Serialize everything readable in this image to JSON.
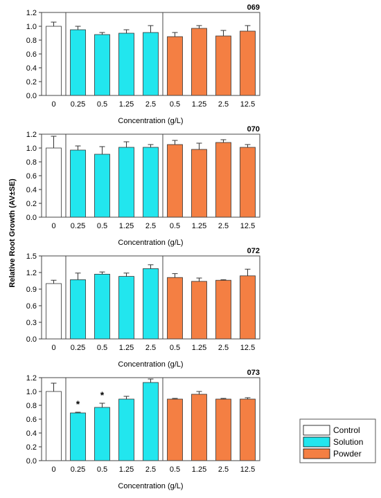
{
  "figure": {
    "ylabel": "Relative Root Growth (AV±SE)"
  },
  "legend": {
    "position": "bottom-right",
    "items": [
      {
        "label": "Control",
        "color": "#ffffff"
      },
      {
        "label": "Solution",
        "color": "#22e6ee"
      },
      {
        "label": "Powder",
        "color": "#f47f43"
      }
    ]
  },
  "chart_data": [
    {
      "type": "bar",
      "title": "069",
      "xlabel": "Concentration (g/L)",
      "ylim": [
        0,
        1.2
      ],
      "yticks": [
        "0.0",
        "0.2",
        "0.4",
        "0.6",
        "0.8",
        "1.0",
        "1.2"
      ],
      "categories": [
        "0",
        "0.25",
        "0.5",
        "1.25",
        "2.5",
        "0.5",
        "1.25",
        "2.5",
        "12.5"
      ],
      "groups": [
        "Control",
        "Solution",
        "Solution",
        "Solution",
        "Solution",
        "Powder",
        "Powder",
        "Powder",
        "Powder"
      ],
      "values": [
        1.0,
        0.95,
        0.88,
        0.9,
        0.91,
        0.85,
        0.97,
        0.86,
        0.93
      ],
      "errors": [
        0.06,
        0.05,
        0.03,
        0.05,
        0.1,
        0.06,
        0.04,
        0.08,
        0.08
      ],
      "annotations": [
        "",
        "",
        "",
        "",
        "",
        "",
        "",
        "",
        ""
      ]
    },
    {
      "type": "bar",
      "title": "070",
      "xlabel": "Concentration (g/L)",
      "ylim": [
        0,
        1.2
      ],
      "yticks": [
        "0.0",
        "0.2",
        "0.4",
        "0.6",
        "0.8",
        "1.0",
        "1.2"
      ],
      "categories": [
        "0",
        "0.25",
        "0.5",
        "1.25",
        "2.5",
        "0.5",
        "1.25",
        "2.5",
        "12.5"
      ],
      "groups": [
        "Control",
        "Solution",
        "Solution",
        "Solution",
        "Solution",
        "Powder",
        "Powder",
        "Powder",
        "Powder"
      ],
      "values": [
        1.0,
        0.97,
        0.91,
        1.01,
        1.01,
        1.05,
        0.98,
        1.08,
        1.01
      ],
      "errors": [
        0.17,
        0.06,
        0.11,
        0.08,
        0.04,
        0.06,
        0.09,
        0.04,
        0.04
      ],
      "annotations": [
        "",
        "",
        "",
        "",
        "",
        "",
        "",
        "",
        ""
      ]
    },
    {
      "type": "bar",
      "title": "072",
      "xlabel": "Concentration (g/L)",
      "ylim": [
        0,
        1.5
      ],
      "yticks": [
        "0.0",
        "0.3",
        "0.6",
        "0.9",
        "1.2",
        "1.5"
      ],
      "categories": [
        "0",
        "0.25",
        "0.5",
        "1.25",
        "2.5",
        "0.5",
        "1.25",
        "2.5",
        "12.5"
      ],
      "groups": [
        "Control",
        "Solution",
        "Solution",
        "Solution",
        "Solution",
        "Powder",
        "Powder",
        "Powder",
        "Powder"
      ],
      "values": [
        1.0,
        1.07,
        1.17,
        1.13,
        1.27,
        1.11,
        1.04,
        1.06,
        1.14
      ],
      "errors": [
        0.06,
        0.12,
        0.04,
        0.06,
        0.07,
        0.07,
        0.06,
        0.01,
        0.12
      ],
      "annotations": [
        "",
        "",
        "",
        "",
        "",
        "",
        "",
        "",
        ""
      ]
    },
    {
      "type": "bar",
      "title": "073",
      "xlabel": "Concentration (g/L)",
      "ylim": [
        0,
        1.2
      ],
      "yticks": [
        "0.0",
        "0.2",
        "0.4",
        "0.6",
        "0.8",
        "1.0",
        "1.2"
      ],
      "categories": [
        "0",
        "0.25",
        "0.5",
        "1.25",
        "2.5",
        "0.5",
        "1.25",
        "2.5",
        "12.5"
      ],
      "groups": [
        "Control",
        "Solution",
        "Solution",
        "Solution",
        "Solution",
        "Powder",
        "Powder",
        "Powder",
        "Powder"
      ],
      "values": [
        1.0,
        0.69,
        0.77,
        0.89,
        1.13,
        0.89,
        0.96,
        0.89,
        0.89
      ],
      "errors": [
        0.12,
        0.01,
        0.06,
        0.04,
        0.05,
        0.01,
        0.04,
        0.01,
        0.02
      ],
      "annotations": [
        "",
        "*",
        "*",
        "",
        "",
        "",
        "",
        "",
        ""
      ]
    }
  ]
}
